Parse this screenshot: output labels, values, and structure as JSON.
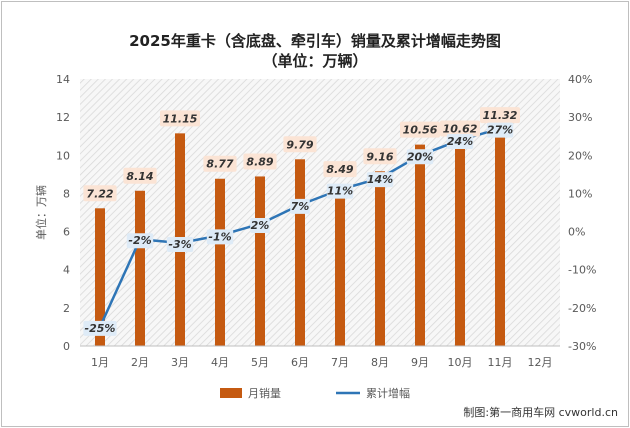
{
  "chart_data": {
    "type": "bar",
    "title": "2025年重卡（含底盘、牵引车）销量及累计增幅走势图",
    "subtitle": "（单位：万辆）",
    "ylabel": "单位：万辆",
    "categories": [
      "1月",
      "2月",
      "3月",
      "4月",
      "5月",
      "6月",
      "7月",
      "8月",
      "9月",
      "10月",
      "11月",
      "12月"
    ],
    "ylim": [
      0,
      14
    ],
    "yticks": [
      0,
      2,
      4,
      6,
      8,
      10,
      12,
      14
    ],
    "y2lim": [
      -30,
      40
    ],
    "y2ticks": [
      -30,
      -20,
      -10,
      0,
      10,
      20,
      30,
      40
    ],
    "y2tick_labels": [
      "-30%",
      "-20%",
      "-10%",
      "0%",
      "10%",
      "20%",
      "30%",
      "40%"
    ],
    "series": [
      {
        "name": "月销量",
        "type": "bar",
        "axis": "left",
        "color": "#C55A11",
        "values": [
          7.22,
          8.14,
          11.15,
          8.77,
          8.89,
          9.79,
          8.49,
          9.16,
          10.56,
          10.62,
          11.32,
          null
        ],
        "labels": [
          "7.22",
          "8.14",
          "11.15",
          "8.77",
          "8.89",
          "9.79",
          "8.49",
          "9.16",
          "10.56",
          "10.62",
          "11.32",
          ""
        ]
      },
      {
        "name": "累计增幅",
        "type": "line",
        "axis": "right",
        "color": "#2E75B6",
        "values": [
          -25,
          -2,
          -3,
          -1,
          2,
          7,
          11,
          14,
          20,
          24,
          27,
          null
        ],
        "labels": [
          "-25%",
          "-2%",
          "-3%",
          "-1%",
          "2%",
          "7%",
          "11%",
          "14%",
          "20%",
          "24%",
          "27%",
          ""
        ]
      }
    ],
    "legend": "bottom",
    "grid": false
  },
  "credit": "制图:第一商用车网 cvworld.cn"
}
